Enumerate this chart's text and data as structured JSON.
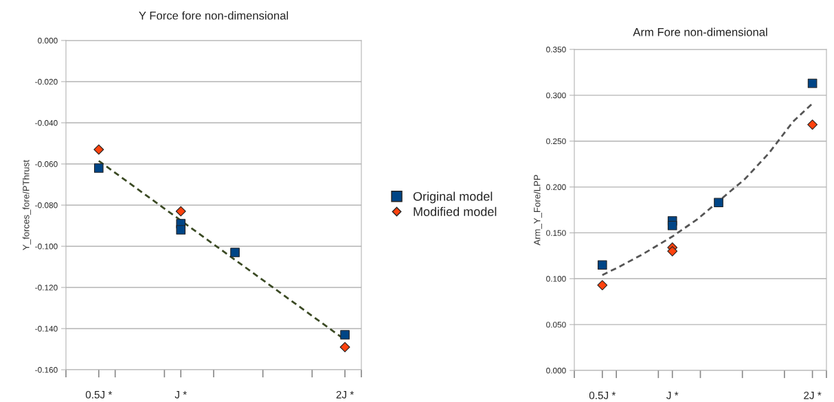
{
  "chart_data": [
    {
      "type": "scatter",
      "title": "Y Force fore non-dimensional",
      "ylabel": "Y_forces_fore/PThrust",
      "xlim": [
        0.3,
        2.1
      ],
      "ylim": [
        -0.16,
        0.0
      ],
      "xticks": [
        {
          "value": 0.3,
          "label": null
        },
        {
          "value": 0.5,
          "label": "0.5J *"
        },
        {
          "value": 0.6,
          "label": null
        },
        {
          "value": 0.9,
          "label": null
        },
        {
          "value": 1.0,
          "label": "J *"
        },
        {
          "value": 1.2,
          "label": null
        },
        {
          "value": 1.5,
          "label": null
        },
        {
          "value": 1.8,
          "label": null
        },
        {
          "value": 2.0,
          "label": "2J *"
        },
        {
          "value": 2.1,
          "label": null
        }
      ],
      "yticks": [
        {
          "value": 0.0,
          "label": "0.000"
        },
        {
          "value": -0.02,
          "label": "-0.020"
        },
        {
          "value": -0.04,
          "label": "-0.040"
        },
        {
          "value": -0.06,
          "label": "-0.060"
        },
        {
          "value": -0.08,
          "label": "-0.080"
        },
        {
          "value": -0.1,
          "label": "-0.100"
        },
        {
          "value": -0.12,
          "label": "-0.120"
        },
        {
          "value": -0.14,
          "label": "-0.140"
        },
        {
          "value": -0.16,
          "label": "-0.160"
        }
      ],
      "grid": "y",
      "legend": "right",
      "series": [
        {
          "name": "Original model",
          "color": "#004586",
          "marker": "square",
          "x": [
            0.5,
            1.0,
            1.0,
            1.33,
            2.0
          ],
          "values": [
            -0.062,
            -0.089,
            -0.092,
            -0.103,
            -0.143
          ]
        },
        {
          "name": "Modified model",
          "color": "#ff420e",
          "marker": "diamond",
          "x": [
            0.5,
            1.0,
            2.0
          ],
          "values": [
            -0.053,
            -0.083,
            -0.149
          ]
        },
        {
          "type": "line",
          "color": "#3b4a24",
          "line_style": "dashed",
          "marker": "none",
          "x": [
            0.5,
            2.0
          ],
          "values": [
            -0.0585,
            -0.1454
          ]
        }
      ]
    },
    {
      "type": "scatter",
      "title": "Arm Fore non-dimensional",
      "ylabel": "Arm_Y_Fore/LPP",
      "xlim": [
        0.3,
        2.1
      ],
      "ylim": [
        0.0,
        0.35
      ],
      "xticks": [
        {
          "value": 0.3,
          "label": null
        },
        {
          "value": 0.5,
          "label": "0.5J *"
        },
        {
          "value": 0.6,
          "label": null
        },
        {
          "value": 0.9,
          "label": null
        },
        {
          "value": 1.0,
          "label": "J *"
        },
        {
          "value": 1.2,
          "label": null
        },
        {
          "value": 1.5,
          "label": null
        },
        {
          "value": 1.8,
          "label": null
        },
        {
          "value": 2.0,
          "label": "2J *"
        },
        {
          "value": 2.1,
          "label": null
        }
      ],
      "yticks": [
        {
          "value": 0.0,
          "label": "0.000"
        },
        {
          "value": 0.05,
          "label": "0.050"
        },
        {
          "value": 0.1,
          "label": "0.100"
        },
        {
          "value": 0.15,
          "label": "0.150"
        },
        {
          "value": 0.2,
          "label": "0.200"
        },
        {
          "value": 0.25,
          "label": "0.250"
        },
        {
          "value": 0.3,
          "label": "0.300"
        },
        {
          "value": 0.35,
          "label": "0.350"
        }
      ],
      "grid": "y",
      "series": [
        {
          "color": "#004586",
          "marker": "square",
          "x": [
            0.5,
            1.0,
            1.0,
            1.33,
            2.0
          ],
          "values": [
            0.115,
            0.163,
            0.158,
            0.183,
            0.313
          ]
        },
        {
          "color": "#ff420e",
          "marker": "diamond",
          "x": [
            0.5,
            1.0,
            1.0,
            2.0
          ],
          "values": [
            0.093,
            0.134,
            0.13,
            0.268
          ]
        },
        {
          "type": "line",
          "color": "#555555",
          "line_style": "dashed",
          "marker": "none",
          "x": [
            0.5,
            0.62,
            0.78,
            1.0,
            1.18,
            1.35,
            1.52,
            1.69,
            1.86,
            2.0
          ],
          "values": [
            0.104,
            0.113,
            0.126,
            0.146,
            0.165,
            0.187,
            0.209,
            0.237,
            0.271,
            0.291
          ]
        }
      ]
    }
  ]
}
